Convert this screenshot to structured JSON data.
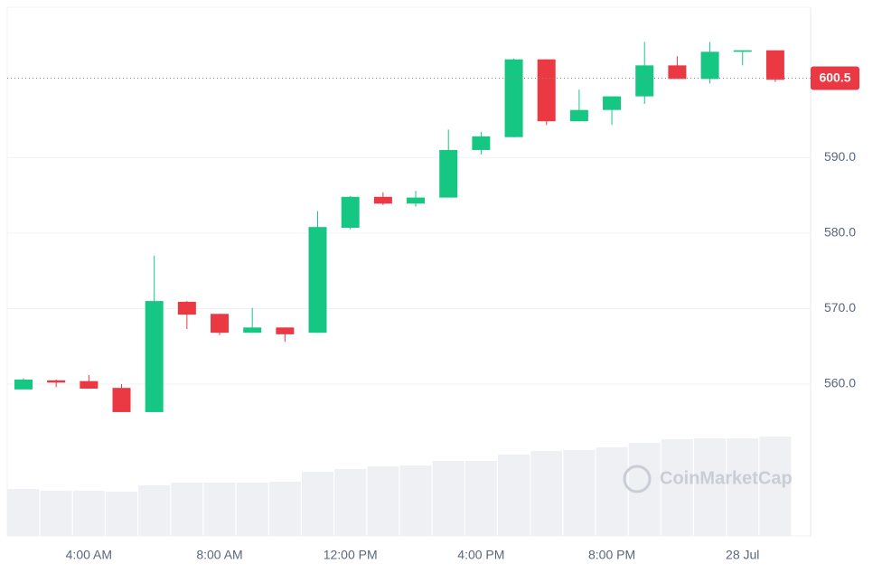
{
  "chart_data": {
    "type": "candlestick",
    "categories": [
      null,
      null,
      "4:00 AM",
      null,
      null,
      null,
      "8:00 AM",
      null,
      null,
      null,
      "12:00 PM",
      null,
      null,
      null,
      "4:00 PM",
      null,
      null,
      null,
      "8:00 PM",
      null,
      null,
      null,
      "28 Jul",
      null
    ],
    "open": [
      559.3,
      560.5,
      560.4,
      559.5,
      556.3,
      570.9,
      569.3,
      566.8,
      567.5,
      566.8,
      580.7,
      584.8,
      583.9,
      584.7,
      591.0,
      592.7,
      603.0,
      594.8,
      596.3,
      598.1,
      602.2,
      600.4,
      604.0,
      604.2
    ],
    "high": [
      560.8,
      560.6,
      561.2,
      560.0,
      577.0,
      571.0,
      569.3,
      570.1,
      567.5,
      582.9,
      584.9,
      585.4,
      585.6,
      593.7,
      593.4,
      603.1,
      603.0,
      599.0,
      598.1,
      605.3,
      603.4,
      605.3,
      604.2,
      604.2
    ],
    "low": [
      559.3,
      559.6,
      559.4,
      556.3,
      556.3,
      567.3,
      566.5,
      566.8,
      565.6,
      566.8,
      580.5,
      583.7,
      583.5,
      584.7,
      590.4,
      592.7,
      594.3,
      594.8,
      594.3,
      597.1,
      600.4,
      599.8,
      602.2,
      600.0
    ],
    "close": [
      560.6,
      560.2,
      559.4,
      556.3,
      571.0,
      569.2,
      566.8,
      567.5,
      566.6,
      580.8,
      584.8,
      583.9,
      584.7,
      591.0,
      592.8,
      603.0,
      594.8,
      596.3,
      598.1,
      602.2,
      600.4,
      604.0,
      604.2,
      600.3
    ],
    "volume": [
      52,
      50,
      50,
      49,
      56,
      59,
      59,
      59,
      60,
      71,
      74,
      77,
      78,
      83,
      83,
      90,
      94,
      95,
      98,
      103,
      107,
      108,
      108,
      110
    ],
    "up_color": "#16c784",
    "down_color": "#ea3943",
    "volume_color": "#eef0f3",
    "ylim": [
      539.9,
      609.9
    ],
    "yticks": [
      {
        "value": 560,
        "label": "560.0"
      },
      {
        "value": 570,
        "label": "570.0"
      },
      {
        "value": 580,
        "label": "580.0"
      },
      {
        "value": 590,
        "label": "590.0"
      }
    ],
    "volume_lim": [
      0,
      130
    ],
    "current_price": {
      "value": 600.5,
      "label": "600.5"
    },
    "watermark": "CoinMarketCap",
    "grid": true
  }
}
